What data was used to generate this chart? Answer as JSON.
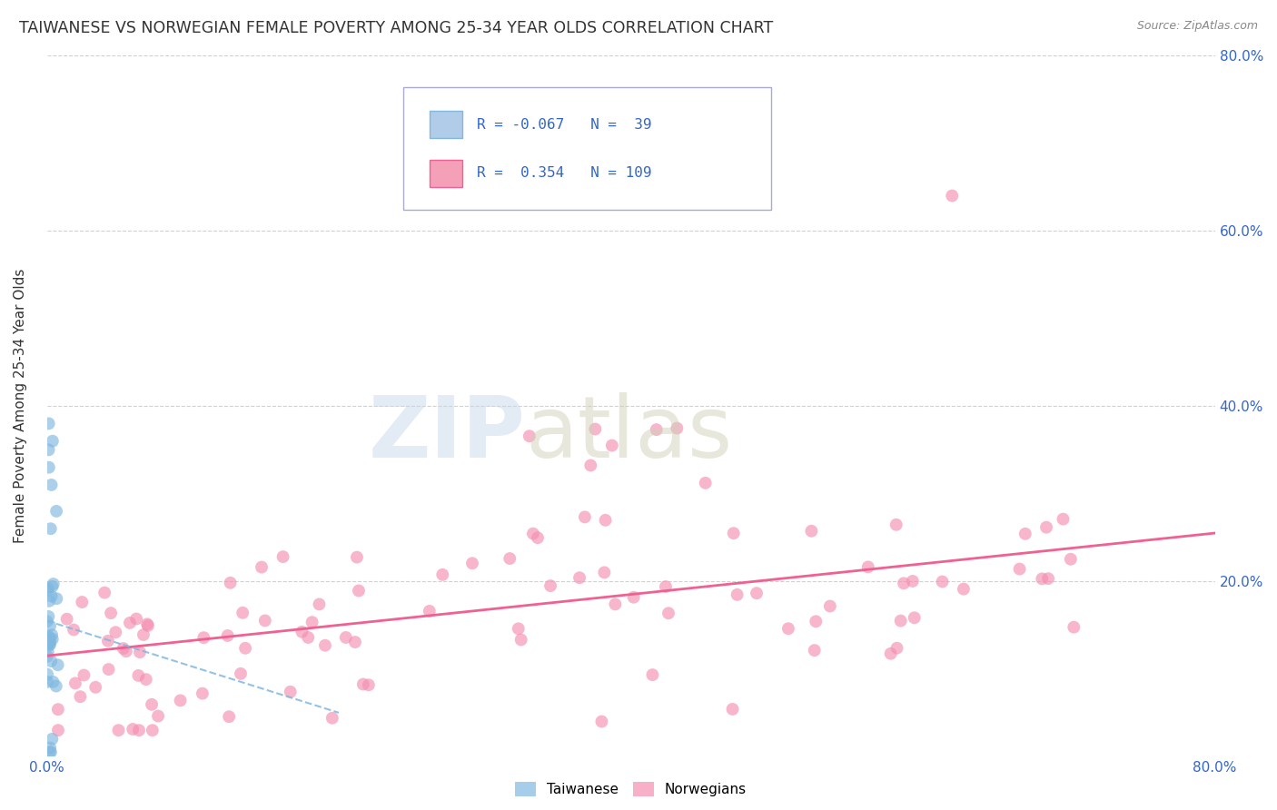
{
  "title": "TAIWANESE VS NORWEGIAN FEMALE POVERTY AMONG 25-34 YEAR OLDS CORRELATION CHART",
  "source": "Source: ZipAtlas.com",
  "ylabel": "Female Poverty Among 25-34 Year Olds",
  "xlim": [
    0.0,
    0.8
  ],
  "ylim": [
    0.0,
    0.8
  ],
  "taiwan_color": "#80b8e0",
  "taiwan_line_color": "#80b8e0",
  "norway_color": "#f48fb1",
  "norway_line_color": "#f06090",
  "background_color": "#ffffff",
  "title_fontsize": 12.5,
  "axis_label_fontsize": 11,
  "tick_fontsize": 11,
  "tick_color": "#3366cc",
  "text_color": "#333333",
  "source_color": "#888888",
  "taiwan_R": -0.067,
  "taiwan_N": 39,
  "norway_R": 0.354,
  "norway_N": 109,
  "grid_color": "#cccccc",
  "watermark_zip_color": "#c8d8ea",
  "watermark_atlas_color": "#d0d0b8",
  "norway_trend_x0": 0.0,
  "norway_trend_y0": 0.115,
  "norway_trend_x1": 0.8,
  "norway_trend_y1": 0.255,
  "taiwan_trend_x0": 0.0,
  "taiwan_trend_y0": 0.155,
  "taiwan_trend_x1": 0.2,
  "taiwan_trend_y1": 0.05
}
